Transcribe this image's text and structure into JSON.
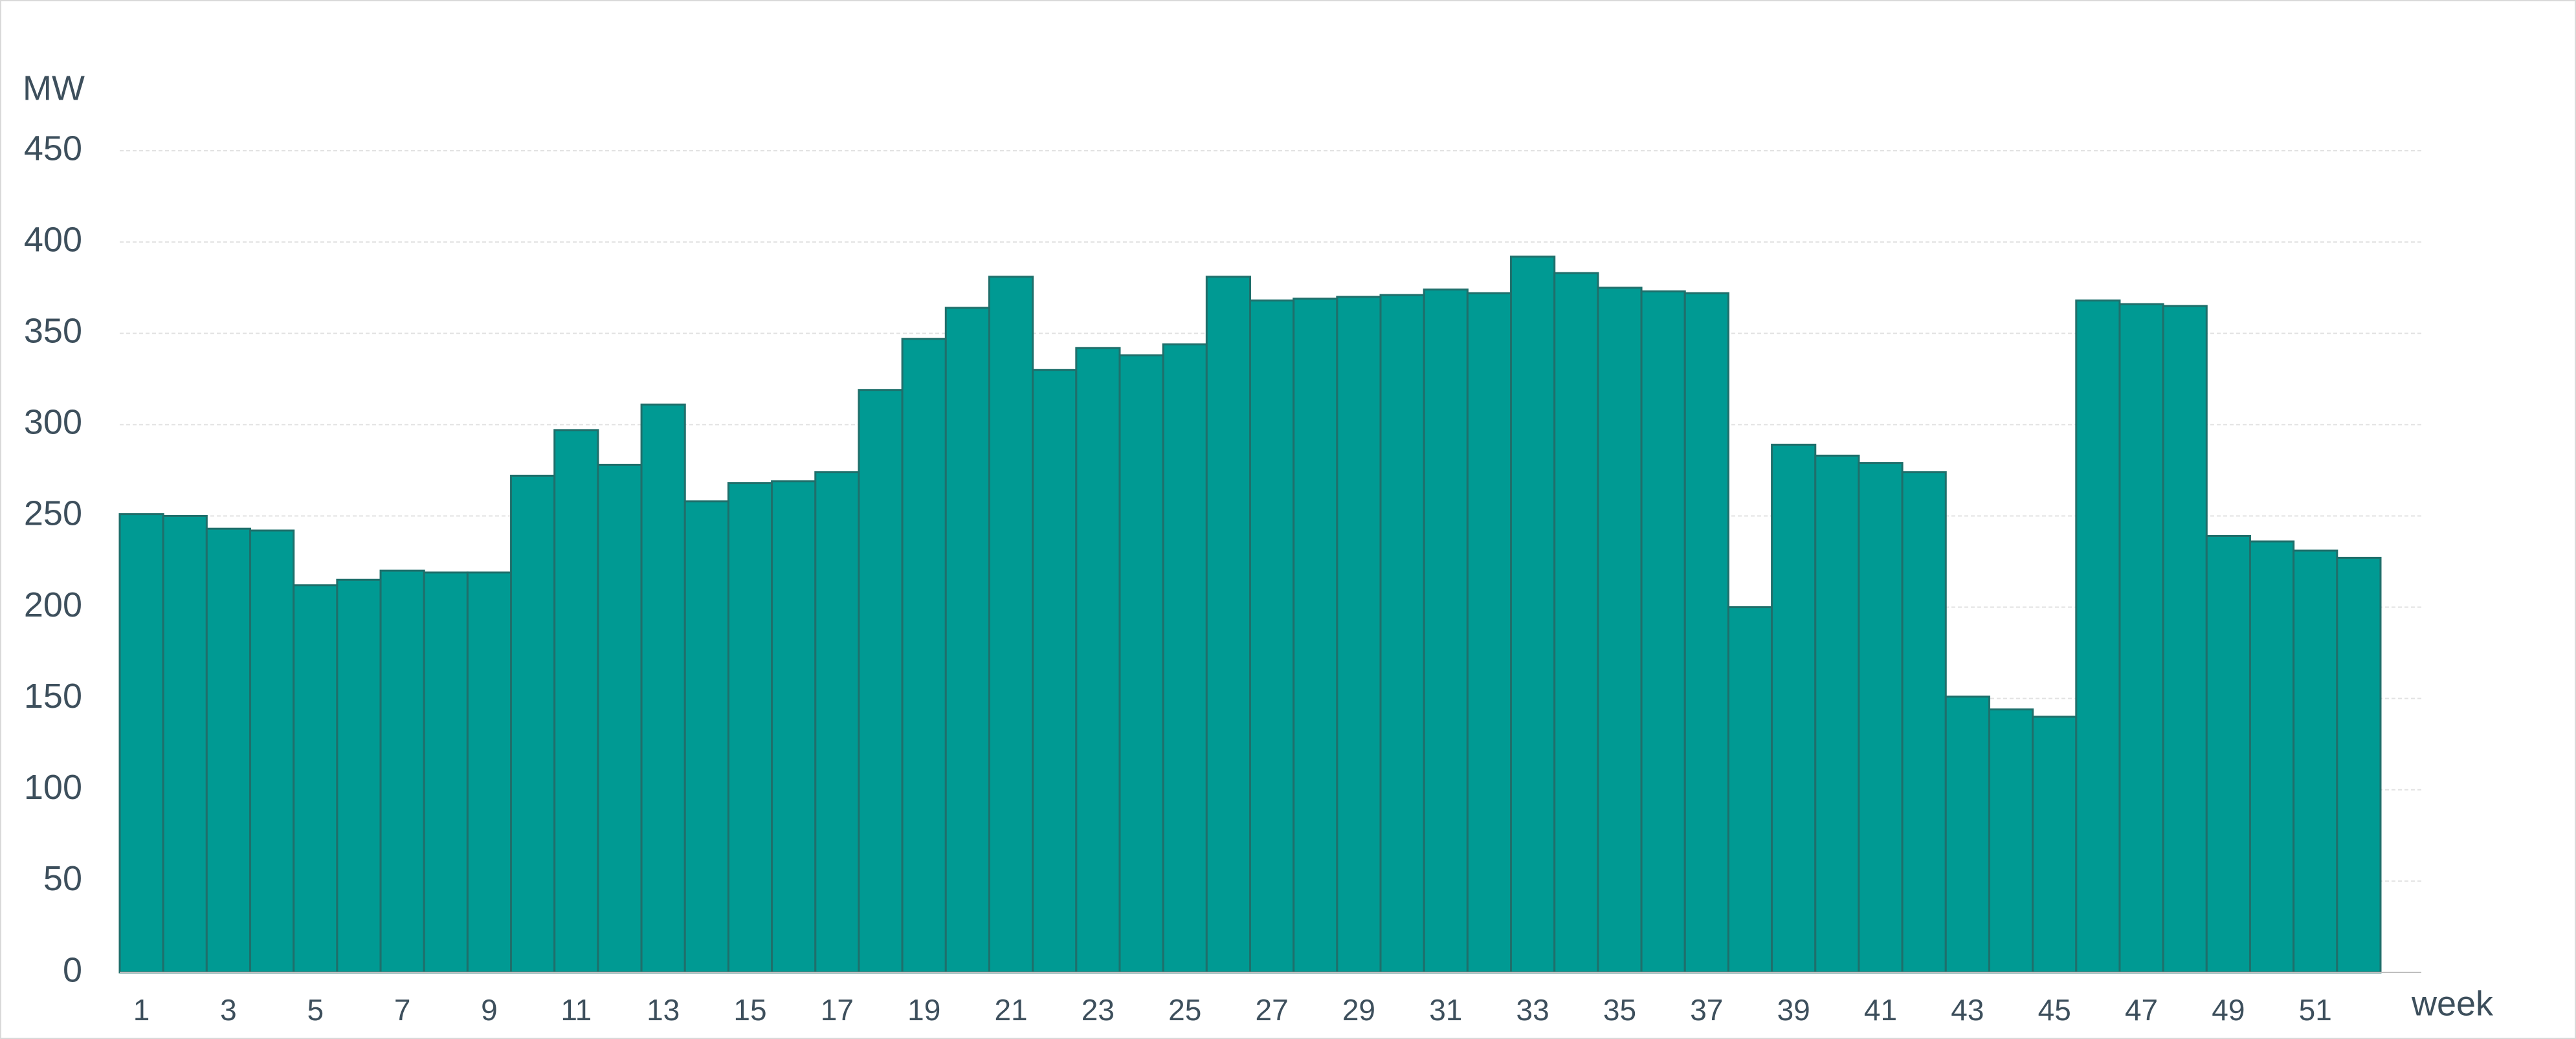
{
  "chart_data": {
    "type": "bar",
    "y_label": "MW",
    "x_label": "week",
    "categories": [
      "1",
      null,
      "3",
      null,
      "5",
      null,
      "7",
      null,
      "9",
      null,
      "11",
      null,
      "13",
      null,
      "15",
      null,
      "17",
      null,
      "19",
      null,
      "21",
      null,
      "23",
      null,
      "25",
      null,
      "27",
      null,
      "29",
      null,
      "31",
      null,
      "33",
      null,
      "35",
      null,
      "37",
      null,
      "39",
      null,
      "41",
      null,
      "43",
      null,
      "45",
      null,
      "47",
      null,
      "49",
      null,
      "51",
      null
    ],
    "values": [
      251,
      250,
      243,
      242,
      212,
      215,
      220,
      219,
      219,
      272,
      297,
      278,
      311,
      258,
      268,
      269,
      274,
      319,
      347,
      364,
      381,
      330,
      342,
      338,
      344,
      381,
      368,
      369,
      370,
      371,
      374,
      372,
      392,
      383,
      375,
      373,
      372,
      200,
      289,
      283,
      279,
      274,
      151,
      144,
      140,
      368,
      366,
      365,
      239,
      236,
      231,
      227
    ],
    "color": "#009a93",
    "edge_color": "#1f6f6b",
    "ylim": [
      0,
      450
    ],
    "yticks": [
      0,
      50,
      100,
      150,
      200,
      250,
      300,
      350,
      400,
      450
    ],
    "grid": true
  }
}
